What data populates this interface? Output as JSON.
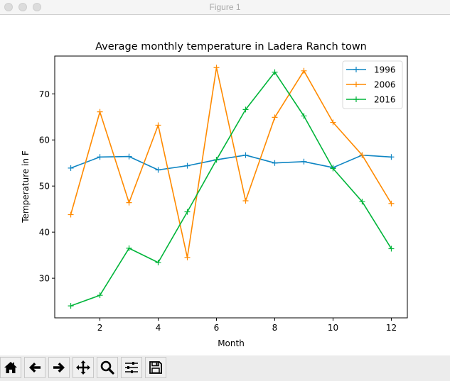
{
  "window": {
    "title": "Figure 1"
  },
  "toolbar": {
    "buttons": [
      {
        "name": "home-button",
        "icon": "home-icon"
      },
      {
        "name": "back-button",
        "icon": "arrow-left-icon"
      },
      {
        "name": "forward-button",
        "icon": "arrow-right-icon"
      },
      {
        "name": "pan-button",
        "icon": "move-icon"
      },
      {
        "name": "zoom-button",
        "icon": "magnifier-icon"
      },
      {
        "name": "configure-subplots-button",
        "icon": "sliders-icon"
      },
      {
        "name": "save-button",
        "icon": "floppy-disk-icon"
      }
    ]
  },
  "colors": {
    "1996": "#0e85c3",
    "2006": "#ff8a00",
    "2016": "#00b53a"
  },
  "chart_data": {
    "type": "line",
    "title": "Average monthly temperature in Ladera Ranch town",
    "xlabel": "Month",
    "ylabel": "Temperature in F",
    "x": [
      1,
      2,
      3,
      4,
      5,
      6,
      7,
      8,
      9,
      10,
      11,
      12
    ],
    "series": [
      {
        "name": "1996",
        "values": [
          53.9,
          56.3,
          56.4,
          53.5,
          54.4,
          55.7,
          56.7,
          55.0,
          55.3,
          54.0,
          56.7,
          56.3
        ]
      },
      {
        "name": "2006",
        "values": [
          43.8,
          66.1,
          46.4,
          63.2,
          34.5,
          75.7,
          46.8,
          64.9,
          75.0,
          63.8,
          56.7,
          46.2
        ]
      },
      {
        "name": "2016",
        "values": [
          24.0,
          26.3,
          36.5,
          33.4,
          44.4,
          55.7,
          66.6,
          74.7,
          65.2,
          53.8,
          46.6,
          36.4
        ]
      }
    ],
    "marker": "+",
    "xticks": [
      2,
      4,
      6,
      8,
      10,
      12
    ],
    "yticks": [
      30,
      40,
      50,
      60,
      70
    ],
    "xlim": [
      0.45,
      12.55
    ],
    "ylim": [
      21.4,
      78.2
    ],
    "grid": false,
    "legend_position": "upper right"
  }
}
